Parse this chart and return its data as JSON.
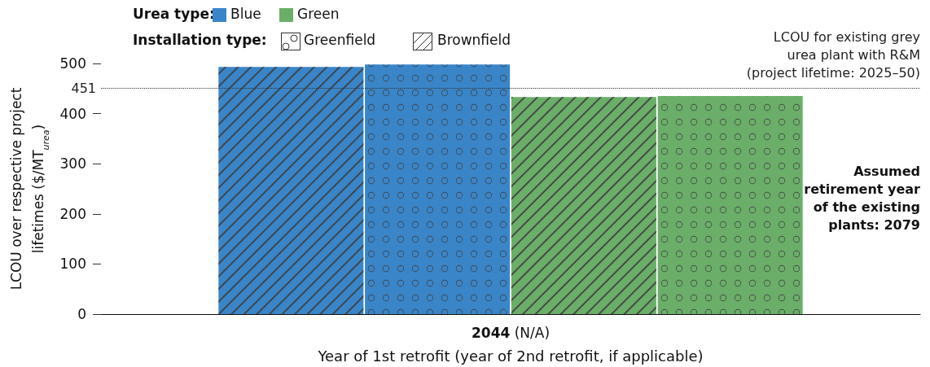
{
  "chart_data": {
    "type": "bar",
    "categories": [
      "2044 (N/A)"
    ],
    "xlabel": "Year of 1st retrofit (year of 2nd retrofit, if applicable)",
    "ylabel": "LCOU over respective project lifetimes ($/MT$_{urea}$)",
    "ylim": [
      0,
      500
    ],
    "yticks": [
      0,
      100,
      200,
      300,
      400,
      500
    ],
    "grid": false,
    "series": [
      {
        "color": "#3a84c8",
        "values": [
          493
        ]
      },
      {
        "color": "#3a84c8",
        "values": [
          498
        ]
      },
      {
        "color": "#6aae6a",
        "values": [
          433
        ]
      },
      {
        "color": "#6aae6a",
        "values": [
          435
        ]
      }
    ],
    "ref_lines": [
      {
        "axis": "y",
        "value": 451,
        "label": "451",
        "line_style": "dotted",
        "color": "#333333"
      }
    ],
    "annotations": [
      "Urea type:",
      "Blue",
      "Green",
      "Installation type:",
      "Greenfield",
      "Brownfield",
      {
        "text": "LCOU for existing grey\nurea plant with R&M\n(project lifetime: 2025–50)",
        "y": 451
      },
      "Assumed\nretirement year\nof the existing\nplants: 2079"
    ]
  }
}
